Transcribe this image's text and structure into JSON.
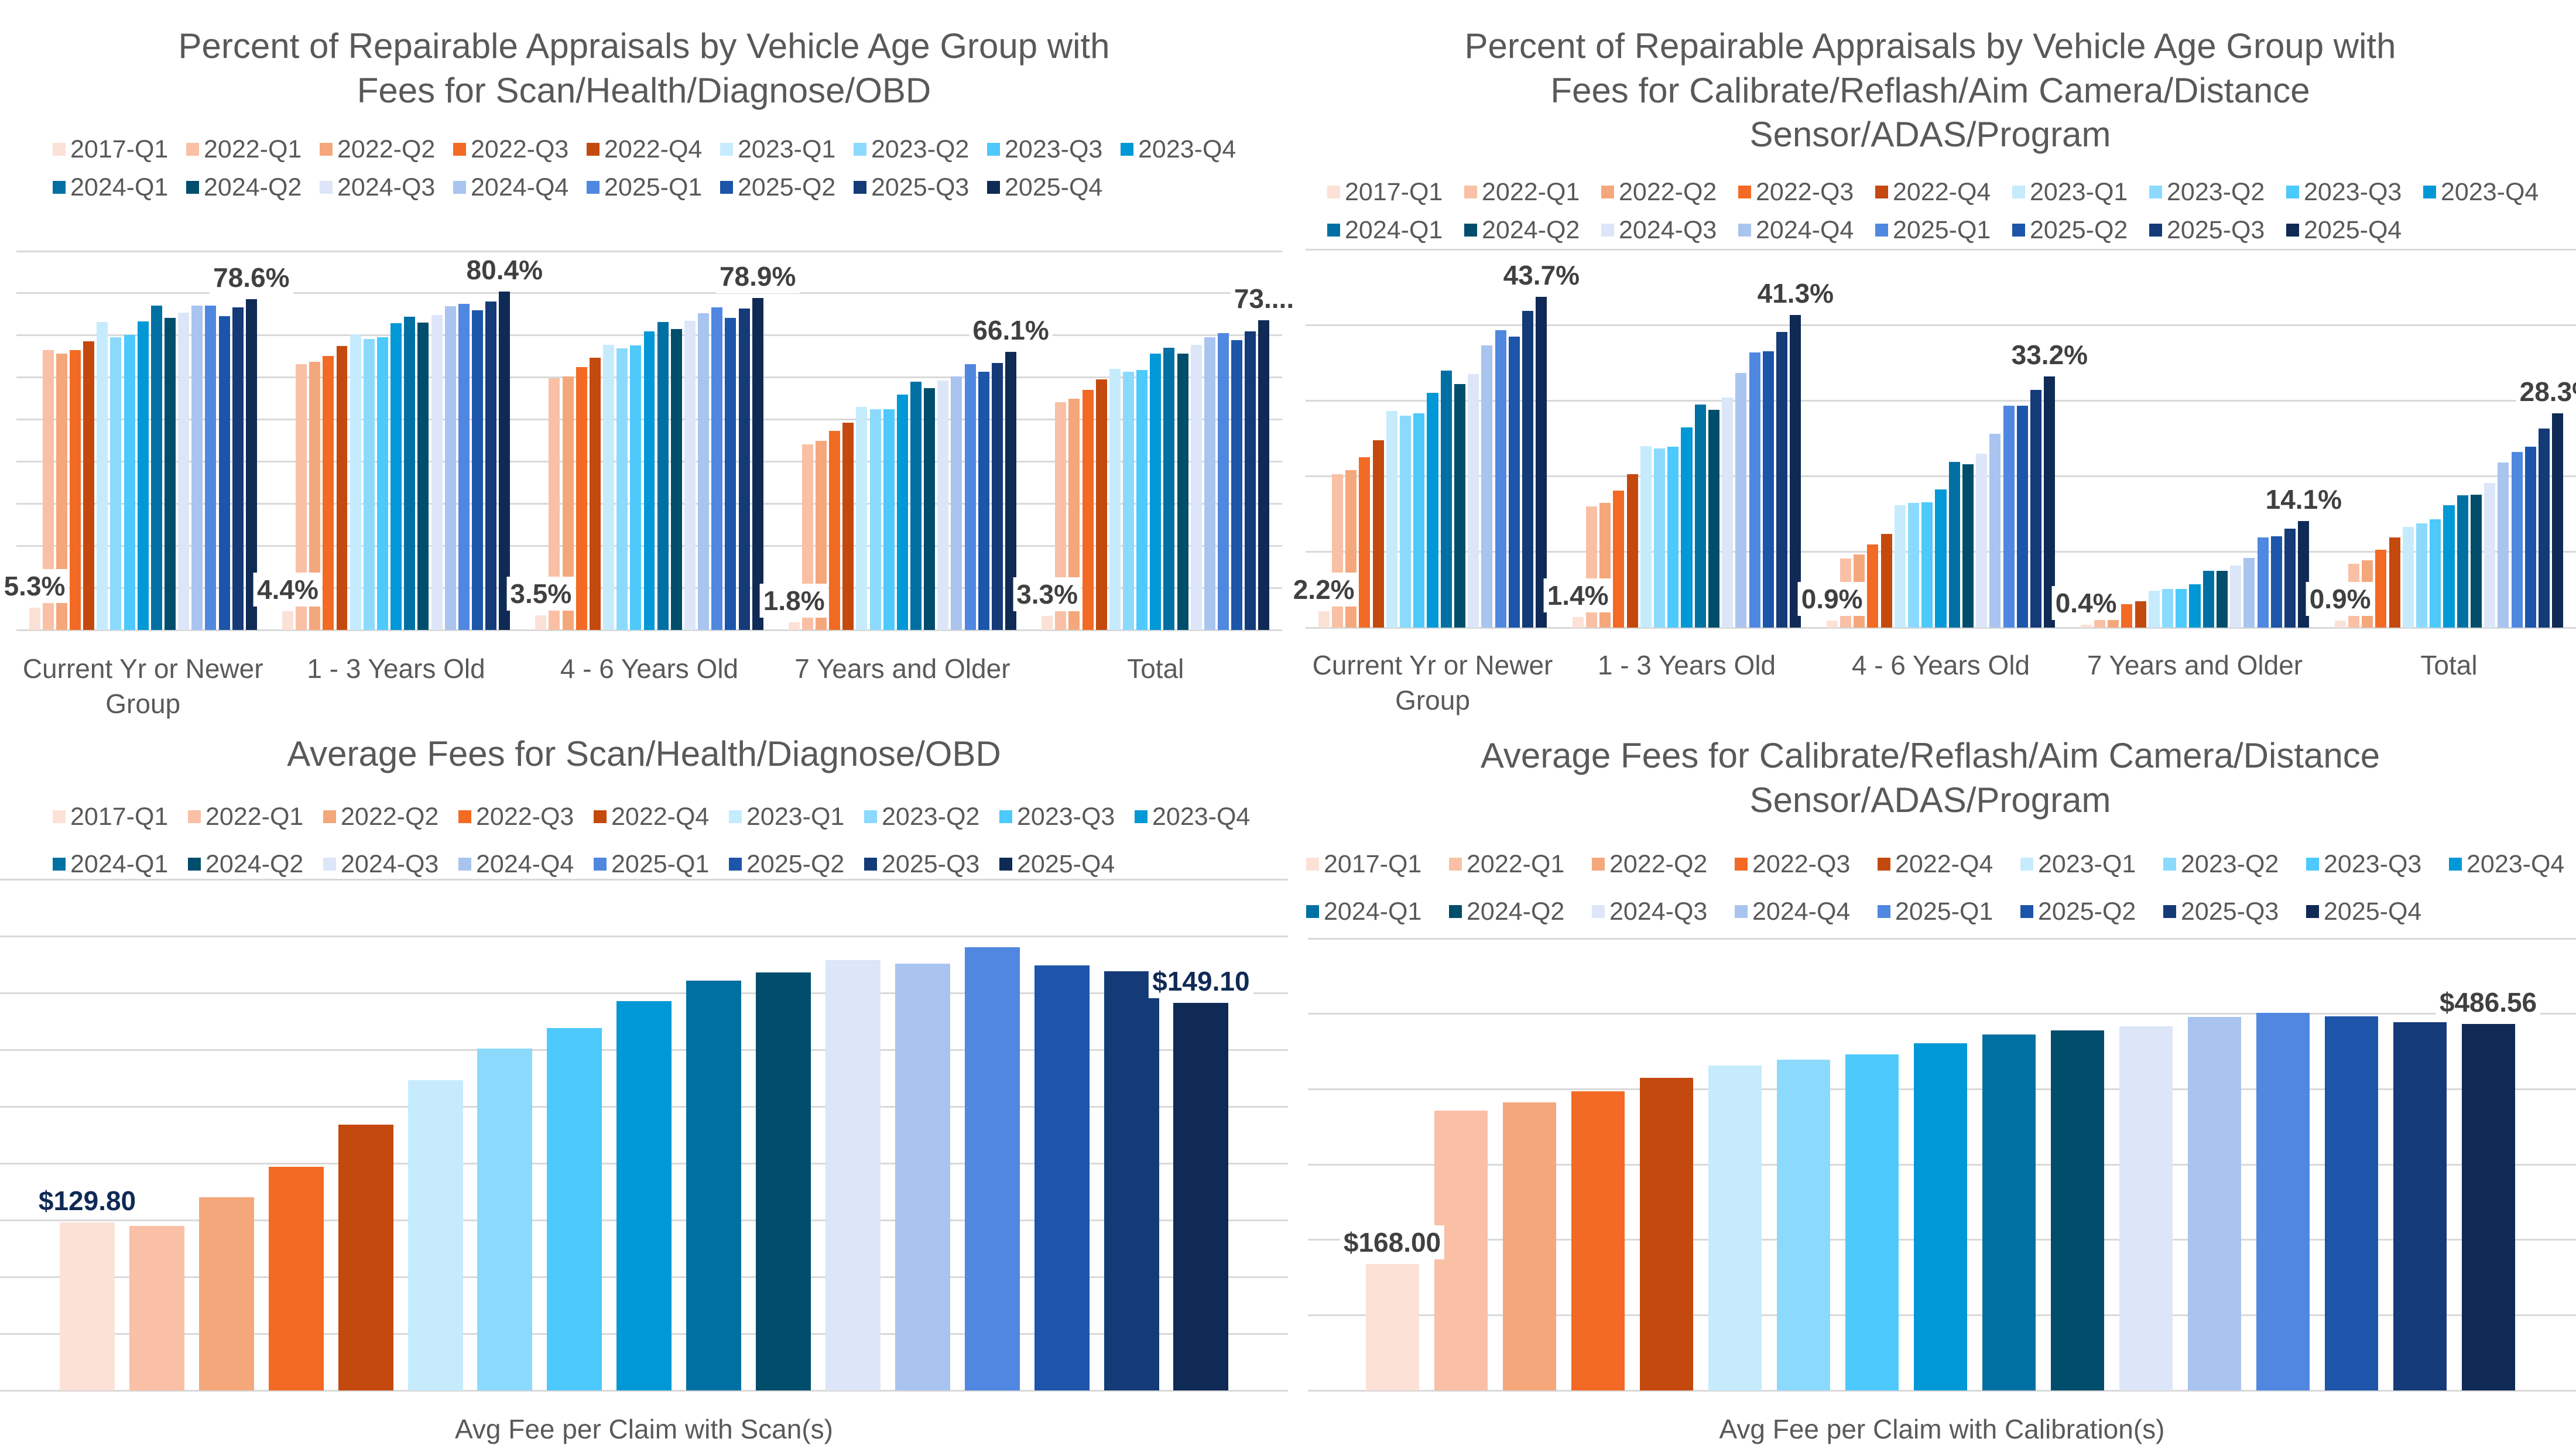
{
  "series_colors": {
    "2017-Q1": "#FCE1D6",
    "2022-Q1": "#F9C0A5",
    "2022-Q2": "#F5A77C",
    "2022-Q3": "#F26A24",
    "2022-Q4": "#C4490E",
    "2023-Q1": "#C6EBFD",
    "2023-Q2": "#8BDAFD",
    "2023-Q3": "#4DC9FC",
    "2023-Q4": "#0098D6",
    "2024-Q1": "#0070A3",
    "2024-Q2": "#004D6C",
    "2024-Q3": "#DCE6F8",
    "2024-Q4": "#A9C4EF",
    "2025-Q1": "#5087E0",
    "2025-Q2": "#1C55A9",
    "2025-Q3": "#143A78",
    "2025-Q4": "#0F2A55"
  },
  "chart_data": [
    {
      "type": "bar",
      "title_lines": [
        "Percent of Repairable Appraisals by Vehicle Age Group with",
        "Fees for Scan/Health/Diagnose/OBD"
      ],
      "categories": [
        "Current Yr or Newer Group",
        "1 - 3 Years Old",
        "4 - 6 Years Old",
        "7 Years and Older",
        "Total"
      ],
      "ylim": [
        0,
        90
      ],
      "grid_step": 10,
      "grid": true,
      "legend": "top",
      "unit": "%",
      "series": [
        {
          "name": "2017-Q1",
          "values": [
            5.3,
            4.4,
            3.5,
            1.8,
            3.3
          ]
        },
        {
          "name": "2022-Q1",
          "values": [
            66.5,
            63.2,
            59.8,
            44.1,
            54.1
          ]
        },
        {
          "name": "2022-Q2",
          "values": [
            65.6,
            63.7,
            60.3,
            44.9,
            54.9
          ]
        },
        {
          "name": "2022-Q3",
          "values": [
            66.5,
            65.1,
            62.4,
            47.3,
            57.1
          ]
        },
        {
          "name": "2022-Q4",
          "values": [
            68.6,
            67.5,
            64.7,
            49.2,
            59.5
          ]
        },
        {
          "name": "2023-Q1",
          "values": [
            73.2,
            70.3,
            67.8,
            53.0,
            62.0
          ]
        },
        {
          "name": "2023-Q2",
          "values": [
            69.5,
            69.1,
            66.9,
            52.5,
            61.3
          ]
        },
        {
          "name": "2023-Q3",
          "values": [
            70.1,
            69.5,
            67.6,
            52.4,
            61.8
          ]
        },
        {
          "name": "2023-Q4",
          "values": [
            73.3,
            72.9,
            71.0,
            55.9,
            65.6
          ]
        },
        {
          "name": "2024-Q1",
          "values": [
            77.1,
            74.4,
            73.2,
            59.0,
            67.1
          ]
        },
        {
          "name": "2024-Q2",
          "values": [
            74.1,
            73.0,
            71.5,
            57.5,
            65.7
          ]
        },
        {
          "name": "2024-Q3",
          "values": [
            75.4,
            74.8,
            73.4,
            59.3,
            67.8
          ]
        },
        {
          "name": "2024-Q4",
          "values": [
            77.1,
            76.9,
            75.2,
            60.3,
            69.5
          ]
        },
        {
          "name": "2025-Q1",
          "values": [
            77.1,
            77.5,
            76.6,
            63.2,
            70.5
          ]
        },
        {
          "name": "2025-Q2",
          "values": [
            74.6,
            75.9,
            74.2,
            61.4,
            68.8
          ]
        },
        {
          "name": "2025-Q3",
          "values": [
            76.6,
            78.0,
            76.3,
            63.4,
            71.0
          ]
        },
        {
          "name": "2025-Q4",
          "values": [
            78.6,
            80.4,
            78.9,
            66.1,
            73.6
          ]
        }
      ],
      "first_labels": [
        "5.3%",
        "4.4%",
        "3.5%",
        "1.8%",
        "3.3%"
      ],
      "last_labels": [
        "78.6%",
        "80.4%",
        "78.9%",
        "66.1%",
        "73...."
      ]
    },
    {
      "type": "bar",
      "title_lines": [
        "Percent of Repairable Appraisals by Vehicle Age Group with",
        "Fees for Calibrate/Reflash/Aim Camera/Distance",
        "Sensor/ADAS/Program"
      ],
      "categories": [
        "Current Yr or Newer Group",
        "1 - 3 Years Old",
        "4 - 6 Years Old",
        "7 Years and Older",
        "Total"
      ],
      "ylim": [
        0,
        50
      ],
      "grid_step": 10,
      "grid": true,
      "legend": "top",
      "unit": "%",
      "series": [
        {
          "name": "2017-Q1",
          "values": [
            2.2,
            1.4,
            0.9,
            0.4,
            0.9
          ]
        },
        {
          "name": "2022-Q1",
          "values": [
            20.3,
            16.0,
            9.1,
            1.3,
            8.4
          ]
        },
        {
          "name": "2022-Q2",
          "values": [
            20.8,
            16.5,
            9.7,
            1.3,
            8.9
          ]
        },
        {
          "name": "2022-Q3",
          "values": [
            22.5,
            18.1,
            11.0,
            3.1,
            10.3
          ]
        },
        {
          "name": "2022-Q4",
          "values": [
            24.8,
            20.3,
            12.4,
            3.5,
            11.9
          ]
        },
        {
          "name": "2023-Q1",
          "values": [
            28.6,
            24.0,
            16.2,
            4.9,
            13.3
          ]
        },
        {
          "name": "2023-Q2",
          "values": [
            28.0,
            23.7,
            16.5,
            5.1,
            13.8
          ]
        },
        {
          "name": "2023-Q3",
          "values": [
            28.3,
            23.9,
            16.6,
            5.1,
            14.3
          ]
        },
        {
          "name": "2023-Q4",
          "values": [
            31.0,
            26.5,
            18.3,
            5.7,
            16.2
          ]
        },
        {
          "name": "2024-Q1",
          "values": [
            34.0,
            29.5,
            21.9,
            7.5,
            17.5
          ]
        },
        {
          "name": "2024-Q2",
          "values": [
            32.2,
            28.8,
            21.6,
            7.5,
            17.6
          ]
        },
        {
          "name": "2024-Q3",
          "values": [
            33.5,
            30.4,
            23.0,
            8.2,
            19.1
          ]
        },
        {
          "name": "2024-Q4",
          "values": [
            37.3,
            33.7,
            25.6,
            9.2,
            21.8
          ]
        },
        {
          "name": "2025-Q1",
          "values": [
            39.3,
            36.4,
            29.3,
            11.9,
            23.2
          ]
        },
        {
          "name": "2025-Q2",
          "values": [
            38.5,
            36.5,
            29.3,
            12.1,
            23.9
          ]
        },
        {
          "name": "2025-Q3",
          "values": [
            41.9,
            39.1,
            31.4,
            13.1,
            26.3
          ]
        },
        {
          "name": "2025-Q4",
          "values": [
            43.7,
            41.3,
            33.2,
            14.1,
            28.3
          ]
        }
      ],
      "first_labels": [
        "2.2%",
        "1.4%",
        "0.9%",
        "0.4%",
        "0.9%"
      ],
      "last_labels": [
        "43.7%",
        "41.3%",
        "33.2%",
        "14.1%",
        "28.3%"
      ]
    },
    {
      "type": "bar",
      "title_lines": [
        "Average Fees for Scan/Health/Diagnose/OBD"
      ],
      "categories": [
        "Avg Fee per Claim with Scan(s)"
      ],
      "ylim": [
        115,
        160
      ],
      "grid_step": 5,
      "grid": true,
      "legend": "top",
      "unit": "$",
      "series": [
        {
          "name": "2017-Q1",
          "values": [
            129.8
          ]
        },
        {
          "name": "2022-Q1",
          "values": [
            129.5
          ]
        },
        {
          "name": "2022-Q2",
          "values": [
            132.0
          ]
        },
        {
          "name": "2022-Q3",
          "values": [
            134.7
          ]
        },
        {
          "name": "2022-Q4",
          "values": [
            138.4
          ]
        },
        {
          "name": "2023-Q1",
          "values": [
            142.3
          ]
        },
        {
          "name": "2023-Q2",
          "values": [
            145.1
          ]
        },
        {
          "name": "2023-Q3",
          "values": [
            146.9
          ]
        },
        {
          "name": "2023-Q4",
          "values": [
            149.3
          ]
        },
        {
          "name": "2024-Q1",
          "values": [
            151.1
          ]
        },
        {
          "name": "2024-Q2",
          "values": [
            151.8
          ]
        },
        {
          "name": "2024-Q3",
          "values": [
            152.9
          ]
        },
        {
          "name": "2024-Q4",
          "values": [
            152.6
          ]
        },
        {
          "name": "2025-Q1",
          "values": [
            154.0
          ]
        },
        {
          "name": "2025-Q2",
          "values": [
            152.4
          ]
        },
        {
          "name": "2025-Q3",
          "values": [
            151.9
          ]
        },
        {
          "name": "2025-Q4",
          "values": [
            149.1
          ]
        }
      ],
      "first_labels": [
        "$129.80"
      ],
      "last_labels": [
        "$149.10"
      ],
      "label_color": "#0F2A55"
    },
    {
      "type": "bar",
      "title_lines": [
        "Average Fees for Calibrate/Reflash/Aim Camera/Distance",
        "Sensor/ADAS/Program"
      ],
      "categories": [
        "Avg Fee per Claim with Calibration(s)"
      ],
      "ylim": [
        0,
        600
      ],
      "grid_step": 100,
      "grid": true,
      "legend": "top",
      "unit": "$",
      "series": [
        {
          "name": "2017-Q1",
          "values": [
            168.0
          ]
        },
        {
          "name": "2022-Q1",
          "values": [
            371.3
          ]
        },
        {
          "name": "2022-Q2",
          "values": [
            382.7
          ]
        },
        {
          "name": "2022-Q3",
          "values": [
            396.9
          ]
        },
        {
          "name": "2022-Q4",
          "values": [
            414.7
          ]
        },
        {
          "name": "2023-Q1",
          "values": [
            431.0
          ]
        },
        {
          "name": "2023-Q2",
          "values": [
            438.9
          ]
        },
        {
          "name": "2023-Q3",
          "values": [
            445.8
          ]
        },
        {
          "name": "2023-Q4",
          "values": [
            460.6
          ]
        },
        {
          "name": "2024-Q1",
          "values": [
            472.4
          ]
        },
        {
          "name": "2024-Q2",
          "values": [
            478.3
          ]
        },
        {
          "name": "2024-Q3",
          "values": [
            483.7
          ]
        },
        {
          "name": "2024-Q4",
          "values": [
            495.6
          ]
        },
        {
          "name": "2025-Q1",
          "values": [
            501.0
          ]
        },
        {
          "name": "2025-Q2",
          "values": [
            496.5
          ]
        },
        {
          "name": "2025-Q3",
          "values": [
            488.7
          ]
        },
        {
          "name": "2025-Q4",
          "values": [
            486.56
          ]
        }
      ],
      "first_labels": [
        "$168.00"
      ],
      "last_labels": [
        "$486.56"
      ],
      "label_color": "#404040"
    }
  ]
}
